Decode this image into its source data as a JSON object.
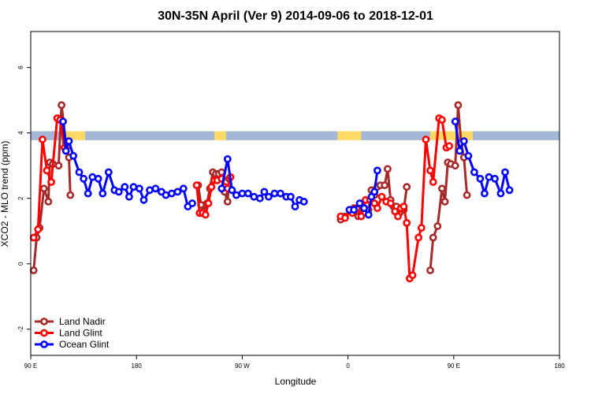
{
  "chart_data": {
    "type": "line",
    "title": "30N-35N April (Ver 9)   2014-09-06 to 2018-12-01",
    "xlabel": "Longitude",
    "ylabel": "XCO2 - MLO trend (ppm)",
    "xlim": [
      -90,
      270
    ],
    "ylim": [
      -2.8,
      7.1
    ],
    "x_ticks": [
      {
        "value": -90,
        "label": "90 E"
      },
      {
        "value": -18,
        "label": "180"
      },
      {
        "value": 54,
        "label": "90 W"
      },
      {
        "value": 126,
        "label": "0"
      },
      {
        "value": 198,
        "label": "90 E"
      },
      {
        "value": 270,
        "label": "180"
      }
    ],
    "y_ticks": [
      -2,
      0,
      2,
      4,
      6
    ],
    "legend": {
      "position": "bottom-left"
    },
    "band": {
      "y_bottom": 3.78,
      "y_top": 4.05,
      "land_color": "#FFD966",
      "ocean_color": "#A3B8D8",
      "ocean_ranges": [
        [
          -90,
          -69
        ],
        [
          -53,
          35
        ],
        [
          43,
          119
        ],
        [
          135,
          182
        ],
        [
          211,
          270
        ]
      ]
    },
    "series": [
      {
        "name": "Land Nadir",
        "color": "#A52A2A",
        "segments": [
          [
            [
              -88,
              -0.2
            ],
            [
              -86,
              0.8
            ],
            [
              -84,
              1.1
            ],
            [
              -81,
              2.3
            ],
            [
              -78,
              1.9
            ],
            [
              -77,
              3.1
            ],
            [
              -75,
              3.05
            ],
            [
              -71,
              3.0
            ],
            [
              -69,
              4.85
            ],
            [
              -66,
              3.7
            ],
            [
              -64,
              3.25
            ],
            [
              -63,
              2.1
            ]
          ],
          [
            [
              24,
              2.4
            ],
            [
              26,
              1.8
            ],
            [
              28,
              1.6
            ],
            [
              30,
              1.85
            ],
            [
              32,
              2.3
            ],
            [
              34,
              2.8
            ],
            [
              36,
              2.75
            ],
            [
              38,
              2.75
            ],
            [
              40,
              2.8
            ],
            [
              42,
              2.2
            ],
            [
              44,
              1.9
            ],
            [
              45,
              2.6
            ]
          ],
          [
            [
              121,
              1.35
            ],
            [
              124,
              1.45
            ],
            [
              128,
              1.6
            ],
            [
              130,
              1.7
            ],
            [
              133,
              1.45
            ],
            [
              136,
              1.7
            ],
            [
              140,
              1.65
            ],
            [
              142,
              2.25
            ],
            [
              144,
              2.1
            ],
            [
              146,
              2.35
            ],
            [
              148,
              2.4
            ],
            [
              151,
              2.4
            ],
            [
              153,
              2.9
            ],
            [
              155,
              1.95
            ],
            [
              157,
              1.75
            ],
            [
              159,
              1.75
            ],
            [
              161,
              1.55
            ],
            [
              164,
              1.65
            ],
            [
              166,
              2.35
            ]
          ],
          [
            [
              182,
              -0.2
            ],
            [
              184,
              0.8
            ],
            [
              187,
              1.15
            ],
            [
              190,
              2.3
            ],
            [
              192,
              1.9
            ],
            [
              194,
              3.1
            ],
            [
              196,
              3.05
            ],
            [
              199,
              3.0
            ],
            [
              201,
              4.85
            ],
            [
              203,
              3.7
            ],
            [
              205,
              3.25
            ],
            [
              207,
              2.1
            ]
          ]
        ]
      },
      {
        "name": "Land Glint",
        "color": "#FF0000",
        "segments": [
          [
            [
              -88,
              0.8
            ],
            [
              -85,
              1.05
            ],
            [
              -82,
              3.8
            ],
            [
              -79,
              2.85
            ],
            [
              -76,
              2.5
            ],
            [
              -72,
              4.45
            ],
            [
              -70,
              4.4
            ],
            [
              -67,
              3.55
            ],
            [
              -65,
              3.6
            ]
          ],
          [
            [
              23,
              2.4
            ],
            [
              25,
              1.55
            ],
            [
              27,
              1.55
            ],
            [
              29,
              1.5
            ],
            [
              31,
              1.85
            ],
            [
              33,
              2.35
            ],
            [
              35,
              2.55
            ],
            [
              37,
              2.55
            ],
            [
              40,
              2.6
            ],
            [
              42,
              2.35
            ],
            [
              44,
              2.3
            ],
            [
              46,
              2.65
            ]
          ],
          [
            [
              121,
              1.45
            ],
            [
              124,
              1.4
            ],
            [
              127,
              1.65
            ],
            [
              129,
              1.55
            ],
            [
              132,
              1.7
            ],
            [
              135,
              1.45
            ],
            [
              138,
              1.95
            ],
            [
              141,
              1.95
            ],
            [
              144,
              1.85
            ],
            [
              146,
              1.7
            ],
            [
              149,
              2.05
            ],
            [
              152,
              1.9
            ],
            [
              155,
              1.85
            ],
            [
              158,
              1.6
            ],
            [
              160,
              1.45
            ],
            [
              162,
              1.7
            ],
            [
              164,
              1.75
            ],
            [
              166,
              1.25
            ],
            [
              168,
              -0.45
            ],
            [
              170,
              -0.35
            ],
            [
              174,
              0.8
            ],
            [
              176,
              1.1
            ],
            [
              179,
              3.8
            ],
            [
              182,
              2.85
            ],
            [
              184,
              2.5
            ],
            [
              188,
              4.45
            ],
            [
              190,
              4.4
            ],
            [
              193,
              3.55
            ],
            [
              195,
              3.6
            ]
          ]
        ]
      },
      {
        "name": "Ocean Glint",
        "color": "#0000FF",
        "segments": [
          [
            [
              -68,
              4.35
            ],
            [
              -66,
              3.45
            ],
            [
              -64,
              3.75
            ],
            [
              -61,
              3.3
            ],
            [
              -57,
              2.8
            ],
            [
              -54,
              2.6
            ],
            [
              -51,
              2.15
            ],
            [
              -48,
              2.65
            ],
            [
              -44,
              2.6
            ],
            [
              -41,
              2.15
            ],
            [
              -37,
              2.8
            ],
            [
              -33,
              2.25
            ],
            [
              -30,
              2.2
            ],
            [
              -26,
              2.35
            ],
            [
              -23,
              2.05
            ],
            [
              -20,
              2.35
            ],
            [
              -16,
              2.3
            ],
            [
              -13,
              1.95
            ],
            [
              -9,
              2.25
            ],
            [
              -5,
              2.3
            ],
            [
              -1,
              2.2
            ],
            [
              2,
              2.1
            ],
            [
              6,
              2.15
            ],
            [
              10,
              2.2
            ],
            [
              14,
              2.3
            ],
            [
              17,
              1.75
            ],
            [
              20,
              1.85
            ]
          ],
          [
            [
              40,
              2.3
            ],
            [
              44,
              3.2
            ],
            [
              47,
              2.25
            ],
            [
              50,
              2.1
            ],
            [
              54,
              2.15
            ],
            [
              58,
              2.15
            ],
            [
              62,
              2.05
            ],
            [
              66,
              2.0
            ],
            [
              69,
              2.2
            ],
            [
              72,
              2.05
            ],
            [
              76,
              2.15
            ],
            [
              80,
              2.15
            ],
            [
              84,
              2.05
            ],
            [
              87,
              2.05
            ],
            [
              90,
              1.75
            ],
            [
              93,
              1.95
            ],
            [
              96,
              1.9
            ]
          ],
          [
            [
              127,
              1.65
            ],
            [
              130,
              1.65
            ],
            [
              134,
              1.85
            ],
            [
              137,
              1.7
            ],
            [
              140,
              1.5
            ],
            [
              142,
              2.05
            ],
            [
              144,
              2.2
            ],
            [
              146,
              2.85
            ]
          ],
          [
            [
              199,
              4.35
            ],
            [
              202,
              3.45
            ],
            [
              205,
              3.75
            ],
            [
              208,
              3.3
            ],
            [
              212,
              2.8
            ],
            [
              216,
              2.6
            ],
            [
              219,
              2.15
            ],
            [
              222,
              2.65
            ],
            [
              226,
              2.6
            ],
            [
              230,
              2.15
            ],
            [
              233,
              2.8
            ],
            [
              236,
              2.25
            ]
          ]
        ]
      }
    ]
  }
}
